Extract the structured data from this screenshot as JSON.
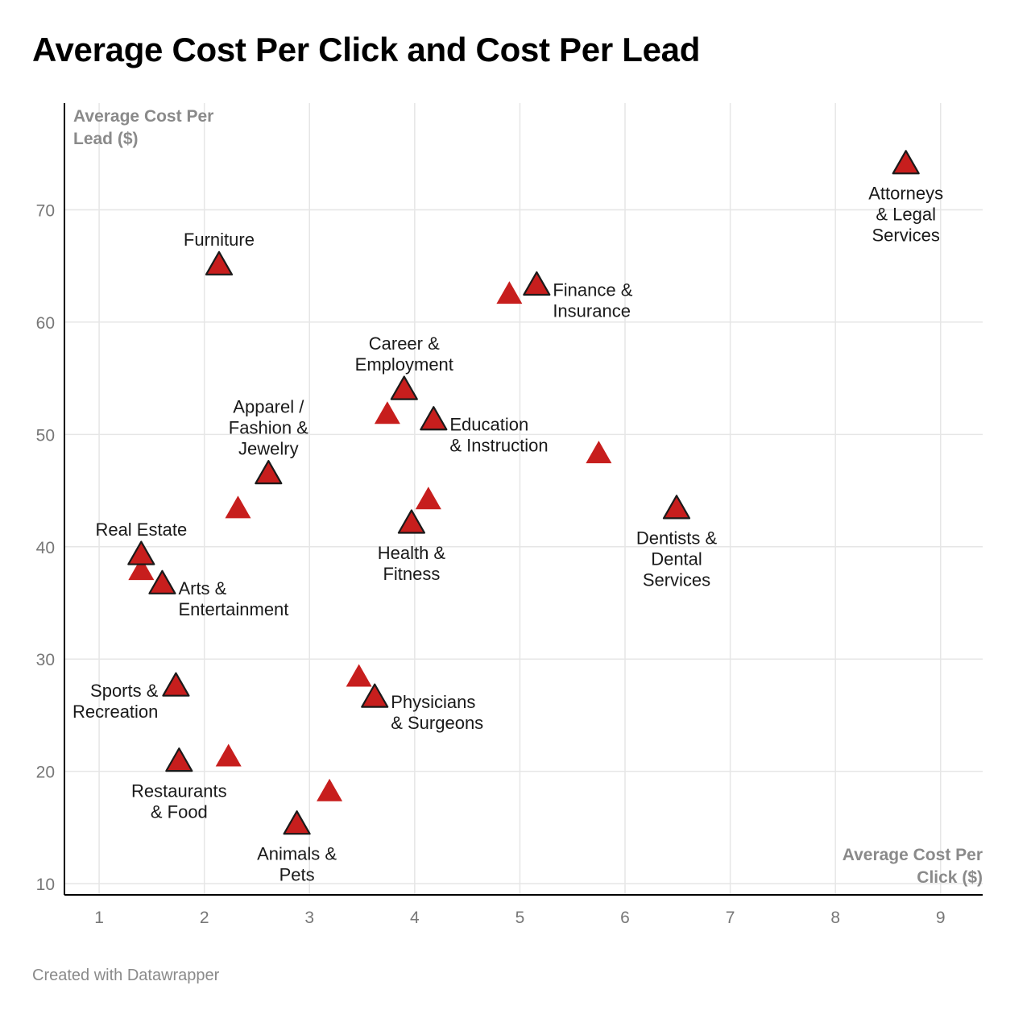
{
  "title": "Average Cost Per Click and Cost Per Lead",
  "footer": "Created with Datawrapper",
  "chart_data": {
    "type": "scatter",
    "title": "Average Cost Per Click and Cost Per Lead",
    "xlabel_lines": [
      "Average Cost Per",
      "Click ($)"
    ],
    "ylabel_lines": [
      "Average Cost Per",
      "Lead ($)"
    ],
    "xlim": [
      0.67,
      9.4
    ],
    "ylim": [
      9.0,
      79.5
    ],
    "xticks": [
      1,
      2,
      3,
      4,
      5,
      6,
      7,
      8,
      9
    ],
    "yticks": [
      10,
      20,
      30,
      40,
      50,
      60,
      70
    ],
    "grid": true,
    "marker": "triangle",
    "colors": {
      "marker_fill": "#c71e1d",
      "marker_stroke": "#1a1a1a",
      "grid": "#e6e6e6",
      "axis": "#000000"
    },
    "points": [
      {
        "x": 8.67,
        "y": 74.0,
        "label": [
          "Attorneys",
          "& Legal",
          "Services"
        ],
        "label_pos": "below",
        "outlined": true
      },
      {
        "x": 2.14,
        "y": 65.0,
        "label": [
          "Furniture"
        ],
        "label_pos": "above",
        "outlined": true
      },
      {
        "x": 5.16,
        "y": 63.2,
        "label": [
          "Finance &",
          "Insurance"
        ],
        "label_pos": "right",
        "outlined": true
      },
      {
        "x": 4.9,
        "y": 62.4,
        "label": [],
        "outlined": false
      },
      {
        "x": 3.9,
        "y": 53.9,
        "label": [
          "Career &",
          "Employment"
        ],
        "label_pos": "above",
        "outlined": true
      },
      {
        "x": 4.18,
        "y": 51.2,
        "label": [
          "Education",
          "& Instruction"
        ],
        "label_pos": "right",
        "outlined": true
      },
      {
        "x": 3.74,
        "y": 51.7,
        "label": [],
        "outlined": false
      },
      {
        "x": 5.75,
        "y": 48.2,
        "label": [],
        "outlined": false
      },
      {
        "x": 2.61,
        "y": 46.4,
        "label": [
          "Apparel /",
          "Fashion &",
          "Jewelry"
        ],
        "label_pos": "above",
        "outlined": true
      },
      {
        "x": 2.32,
        "y": 43.3,
        "label": [],
        "outlined": false
      },
      {
        "x": 6.49,
        "y": 43.3,
        "label": [
          "Dentists &",
          "Dental",
          "Services"
        ],
        "label_pos": "below",
        "outlined": true
      },
      {
        "x": 4.13,
        "y": 44.1,
        "label": [],
        "outlined": false
      },
      {
        "x": 3.97,
        "y": 42.0,
        "label": [
          "Health &",
          "Fitness"
        ],
        "label_pos": "below",
        "outlined": true
      },
      {
        "x": 1.4,
        "y": 39.2,
        "label": [
          "Real Estate"
        ],
        "label_pos": "above",
        "outlined": true
      },
      {
        "x": 1.4,
        "y": 37.8,
        "label": [],
        "outlined": false
      },
      {
        "x": 1.6,
        "y": 36.6,
        "label": [
          "Arts &",
          "Entertainment"
        ],
        "label_pos": "right",
        "outlined": true
      },
      {
        "x": 1.73,
        "y": 27.5,
        "label": [
          "Sports &",
          "Recreation"
        ],
        "label_pos": "left",
        "outlined": true
      },
      {
        "x": 3.47,
        "y": 28.3,
        "label": [],
        "outlined": false
      },
      {
        "x": 3.62,
        "y": 26.5,
        "label": [
          "Physicians",
          "& Surgeons"
        ],
        "label_pos": "right",
        "outlined": true
      },
      {
        "x": 2.23,
        "y": 21.2,
        "label": [],
        "outlined": false
      },
      {
        "x": 1.76,
        "y": 20.8,
        "label": [
          "Restaurants",
          "& Food"
        ],
        "label_pos": "below",
        "outlined": true
      },
      {
        "x": 3.19,
        "y": 18.1,
        "label": [],
        "outlined": false
      },
      {
        "x": 2.88,
        "y": 15.2,
        "label": [
          "Animals &",
          "Pets"
        ],
        "label_pos": "below",
        "outlined": true
      }
    ]
  }
}
